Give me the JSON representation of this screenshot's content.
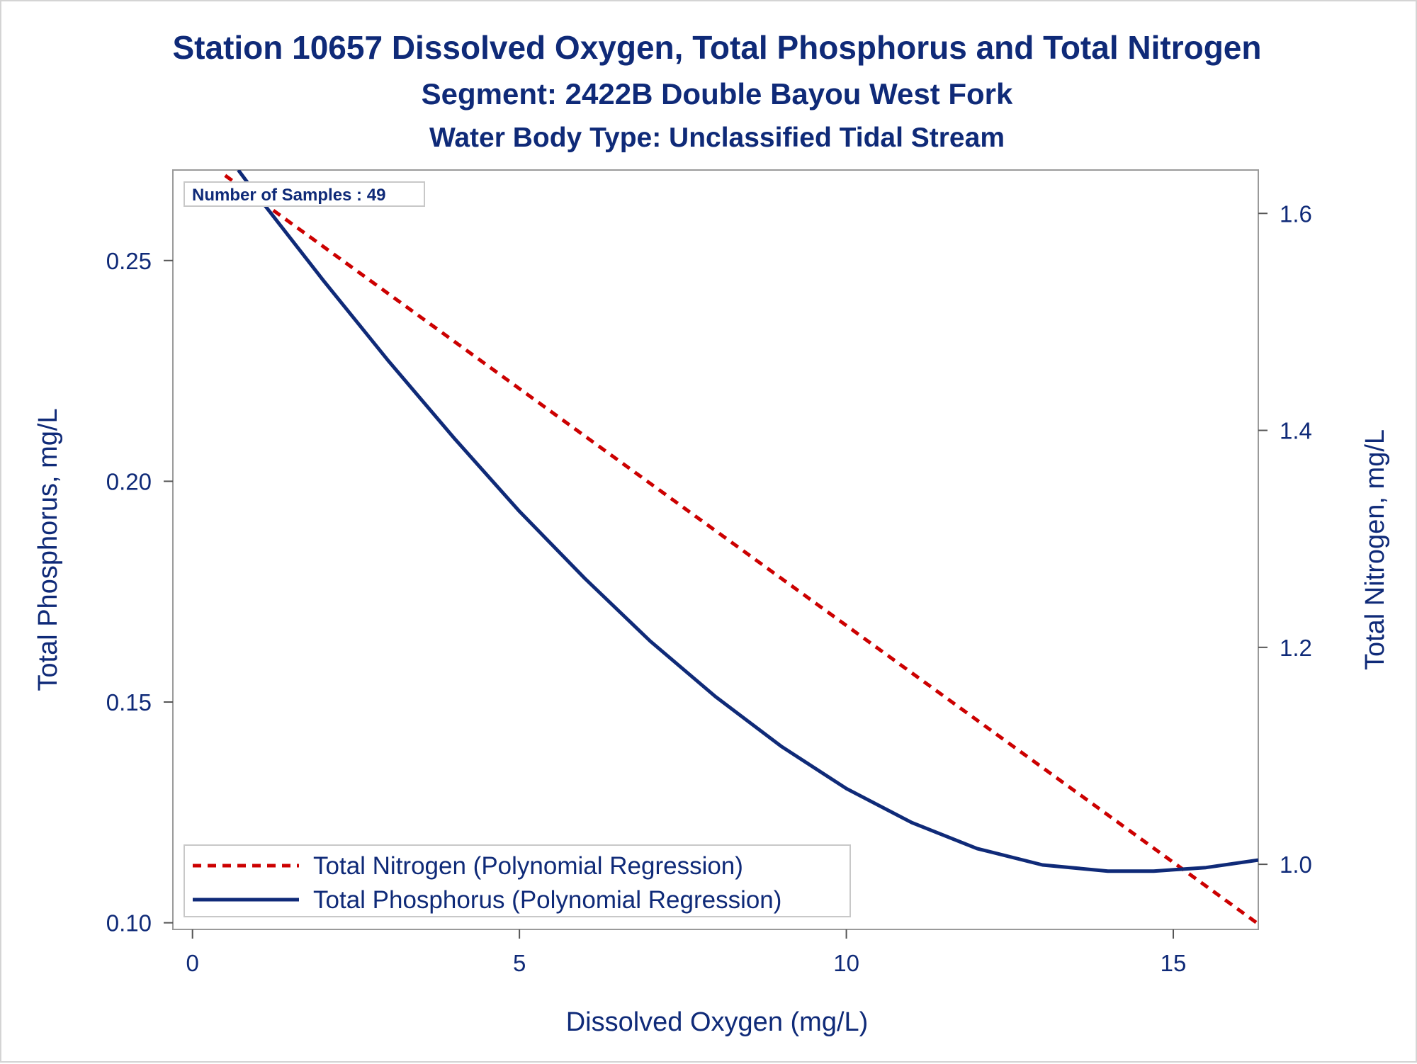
{
  "chart_data": {
    "type": "line",
    "title": "Station 10657  Dissolved Oxygen, Total Phosphorus and Total Nitrogen",
    "subtitle": "Segment: 2422B  Double Bayou West Fork",
    "subtitle2": "Water Body Type: Unclassified Tidal Stream",
    "xlabel": "Dissolved Oxygen (mg/L)",
    "ylabel_left": "Total Phosphorus, mg/L",
    "ylabel_right": "Total Nitrogen, mg/L",
    "xlim": [
      -0.3,
      16.3
    ],
    "ylim_left": [
      0.0985,
      0.2705
    ],
    "ylim_right": [
      0.94,
      1.64
    ],
    "x_ticks": [
      "0",
      "5",
      "10",
      "15"
    ],
    "x_tick_values": [
      0,
      5,
      10,
      15
    ],
    "y_left_ticks": [
      "0.10",
      "0.15",
      "0.20",
      "0.25"
    ],
    "y_left_tick_values": [
      0.1,
      0.15,
      0.2,
      0.25
    ],
    "y_right_ticks": [
      "1.0",
      "1.2",
      "1.4",
      "1.6"
    ],
    "y_right_tick_values": [
      1.0,
      1.2,
      1.4,
      1.6
    ],
    "inset_note": "Number of Samples : 49",
    "legend_position": "bottom-left inside",
    "series": [
      {
        "name": "Total Nitrogen (Polynomial Regression)",
        "axis": "right",
        "style": "dashed",
        "color": "#cc0000",
        "x": [
          0.5,
          16.3
        ],
        "y": [
          1.635,
          0.945
        ]
      },
      {
        "name": "Total Phosphorus (Polynomial Regression)",
        "axis": "left",
        "style": "solid",
        "color": "#0f2a78",
        "x": [
          0.7,
          1.0,
          2.0,
          3.0,
          4.0,
          5.0,
          6.0,
          7.0,
          8.0,
          9.0,
          10.0,
          11.0,
          12.0,
          13.0,
          14.0,
          14.7,
          15.5,
          16.3
        ],
        "y": [
          0.2705,
          0.2645,
          0.2455,
          0.2272,
          0.2098,
          0.1932,
          0.178,
          0.1638,
          0.1512,
          0.14,
          0.1304,
          0.1227,
          0.1168,
          0.1131,
          0.1117,
          0.1117,
          0.1125,
          0.1142
        ]
      }
    ]
  }
}
